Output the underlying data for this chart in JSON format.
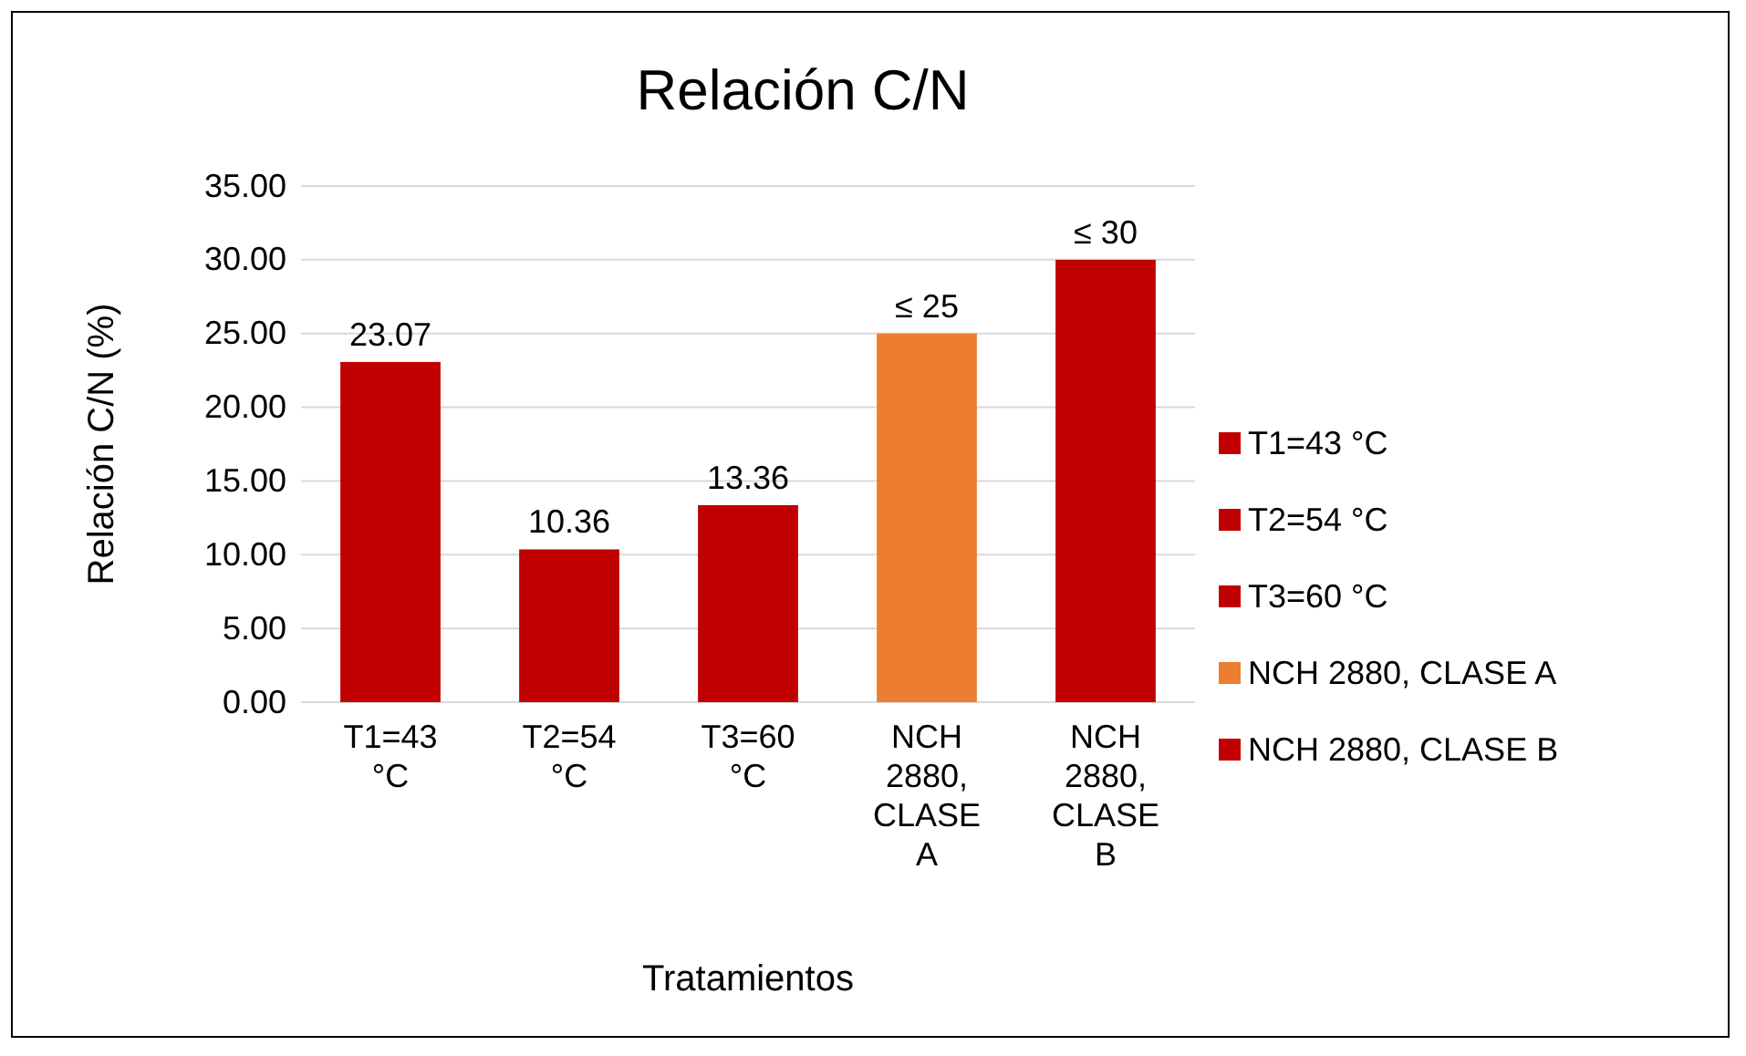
{
  "chart_data": {
    "type": "bar",
    "title": "Relación C/N",
    "xlabel": "Tratamientos",
    "ylabel": "Relación C/N (%)",
    "categories": [
      "T1=43 °C",
      "T2=54 °C",
      "T3=60 °C",
      "NCH 2880, CLASE A",
      "NCH 2880, CLASE B"
    ],
    "series": [
      {
        "name": "T1=43 °C",
        "color": "#c00000",
        "values": [
          23.07,
          null,
          null,
          null,
          null
        ],
        "value_labels": [
          "23.07",
          null,
          null,
          null,
          null
        ]
      },
      {
        "name": "T2=54 °C",
        "color": "#c00000",
        "values": [
          null,
          10.36,
          null,
          null,
          null
        ],
        "value_labels": [
          null,
          "10.36",
          null,
          null,
          null
        ]
      },
      {
        "name": "T3=60 °C",
        "color": "#c00000",
        "values": [
          null,
          null,
          13.36,
          null,
          null
        ],
        "value_labels": [
          null,
          null,
          "13.36",
          null,
          null
        ]
      },
      {
        "name": "NCH 2880, CLASE A",
        "color": "#ed7d31",
        "values": [
          null,
          null,
          null,
          25,
          null
        ],
        "value_labels": [
          null,
          null,
          null,
          "≤ 25",
          null
        ]
      },
      {
        "name": "NCH 2880, CLASE B",
        "color": "#c00000",
        "values": [
          null,
          null,
          null,
          null,
          30
        ],
        "value_labels": [
          null,
          null,
          null,
          null,
          "≤ 30"
        ]
      }
    ],
    "ylim": [
      0,
      35
    ],
    "yticks": [
      {
        "value": 0,
        "label": "0.00"
      },
      {
        "value": 5,
        "label": "5.00"
      },
      {
        "value": 10,
        "label": "10.00"
      },
      {
        "value": 15,
        "label": "15.00"
      },
      {
        "value": 20,
        "label": "20.00"
      },
      {
        "value": 25,
        "label": "25.00"
      },
      {
        "value": 30,
        "label": "30.00"
      },
      {
        "value": 35,
        "label": "35.00"
      }
    ],
    "grid": "y",
    "legend": "right"
  }
}
